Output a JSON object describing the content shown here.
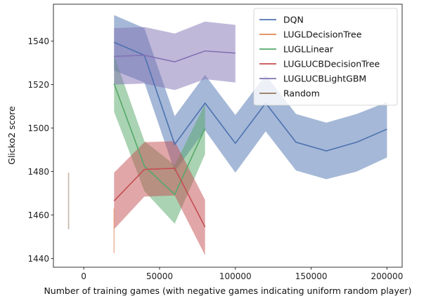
{
  "chart_data": {
    "type": "line",
    "title": "",
    "xlabel": "Number of training games (with negative games indicating uniform random player)",
    "ylabel": "Glicko2 score",
    "xlim": [
      -20000,
      210000
    ],
    "ylim": [
      1436,
      1557
    ],
    "xticks": [
      0,
      50000,
      100000,
      150000,
      200000
    ],
    "yticks": [
      1440,
      1460,
      1480,
      1500,
      1520,
      1540
    ],
    "grid": false,
    "legend_position": "top-right",
    "series": [
      {
        "name": "DQN",
        "color": "#4c72b0",
        "x": [
          20000,
          40000,
          60000,
          80000,
          100000,
          120000,
          140000,
          160000,
          180000,
          200000
        ],
        "y": [
          1539.5,
          1533.5,
          1492.5,
          1511.5,
          1493,
          1511.5,
          1493.5,
          1489.5,
          1493.5,
          1499.5
        ],
        "lower": [
          1526.5,
          1521,
          1480,
          1499,
          1479.5,
          1498.5,
          1480.5,
          1476.5,
          1480,
          1486.5
        ],
        "upper": [
          1552,
          1546,
          1505.5,
          1524.5,
          1506,
          1524.5,
          1506.5,
          1502.5,
          1506.5,
          1512
        ]
      },
      {
        "name": "LUGLDecisionTree",
        "color": "#dd8452",
        "x": [],
        "y": [],
        "lower": [],
        "upper": []
      },
      {
        "name": "LUGLLinear",
        "color": "#55a868",
        "x": [
          20000,
          40000,
          60000,
          80000
        ],
        "y": [
          1520.5,
          1482.5,
          1469.5,
          1500
        ],
        "lower": [
          1507.5,
          1471,
          1456,
          1488
        ],
        "upper": [
          1533.5,
          1494,
          1483,
          1511
        ]
      },
      {
        "name": "LUGLUCBDecisionTree",
        "color": "#c44e52",
        "x": [
          20000,
          40000,
          60000,
          80000
        ],
        "y": [
          1466.5,
          1481,
          1481.5,
          1454.5
        ],
        "lower": [
          1453.5,
          1468.5,
          1469,
          1441.5
        ],
        "upper": [
          1479.5,
          1493.5,
          1494,
          1467
        ]
      },
      {
        "name": "LUGLUCBLightGBM",
        "color": "#8172b3",
        "x": [
          20000,
          40000,
          60000,
          80000,
          100000
        ],
        "y": [
          1533,
          1533.5,
          1530.5,
          1535.5,
          1534.5
        ],
        "lower": [
          1520,
          1520.5,
          1517.5,
          1522.5,
          1521
        ],
        "upper": [
          1546,
          1546.5,
          1543.5,
          1549,
          1547.5
        ]
      },
      {
        "name": "Random",
        "color": "#937860",
        "x": [],
        "y": [],
        "lower": [],
        "upper": []
      }
    ],
    "vertical_bands": [
      {
        "series": "LUGLDecisionTree",
        "color": "#dd8452",
        "x": 20000,
        "ymin": 1442.5,
        "ymax": 1463
      },
      {
        "series": "Random",
        "color": "#937860",
        "x": -10000,
        "ymin": 1453.5,
        "ymax": 1479.5
      }
    ]
  }
}
